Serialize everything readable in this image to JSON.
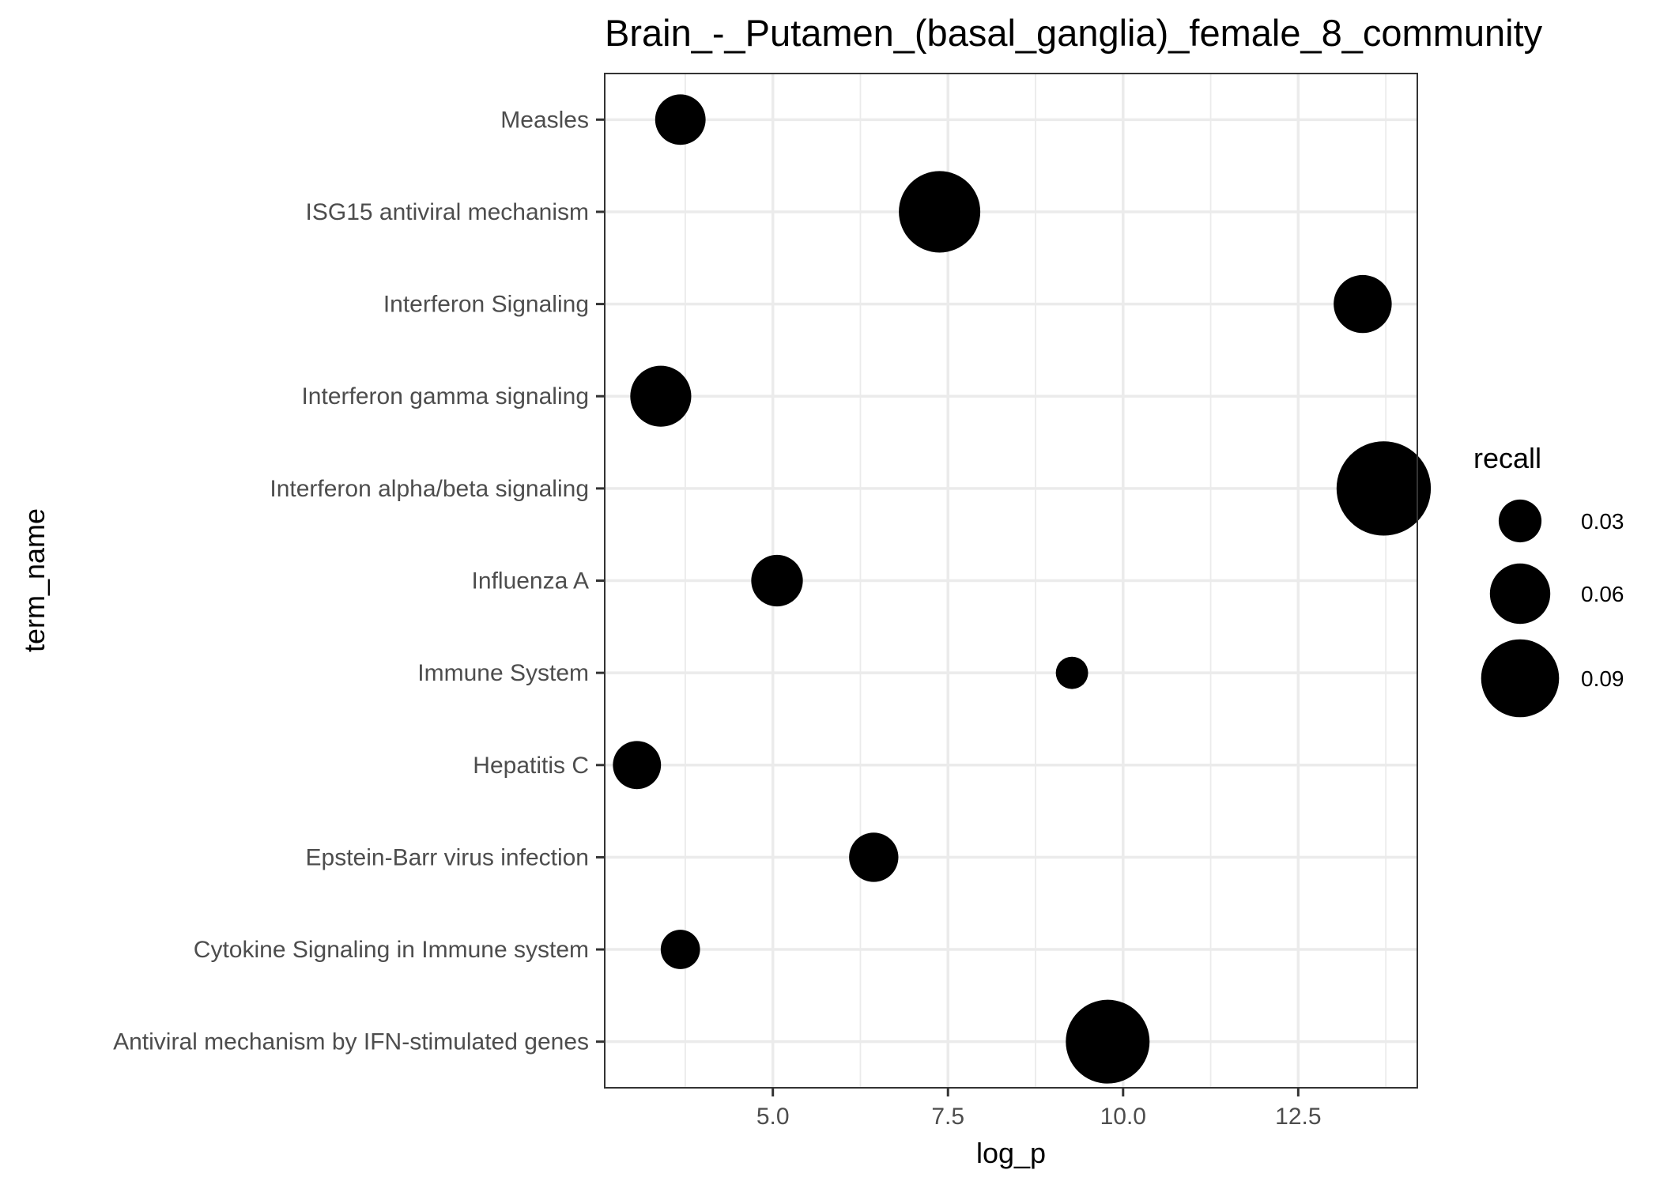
{
  "chart_data": {
    "type": "scatter",
    "title": "Brain_-_Putamen_(basal_ganglia)_female_8_community",
    "xlabel": "log_p",
    "ylabel": "term_name",
    "xlim": [
      2.6,
      14.2
    ],
    "x_ticks": [
      5.0,
      7.5,
      10.0,
      12.5
    ],
    "x_tick_labels": [
      "5.0",
      "7.5",
      "10.0",
      "12.5"
    ],
    "grid": true,
    "legend": {
      "title": "recall",
      "placement": "right",
      "entries": [
        {
          "label": "0.03",
          "value": 0.03
        },
        {
          "label": "0.06",
          "value": 0.06
        },
        {
          "label": "0.09",
          "value": 0.09
        }
      ]
    },
    "categories": [
      "Measles",
      "ISG15 antiviral mechanism",
      "Interferon Signaling",
      "Interferon gamma signaling",
      "Interferon alpha/beta signaling",
      "Influenza A",
      "Immune System",
      "Hepatitis C",
      "Epstein-Barr virus infection",
      "Cytokine Signaling in Immune system",
      "Antiviral mechanism by IFN-stimulated genes"
    ],
    "points": [
      {
        "term": "Measles",
        "log_p": 3.68,
        "recall": 0.043
      },
      {
        "term": "ISG15 antiviral mechanism",
        "log_p": 7.38,
        "recall": 0.096
      },
      {
        "term": "Interferon Signaling",
        "log_p": 13.42,
        "recall": 0.056
      },
      {
        "term": "Interferon gamma signaling",
        "log_p": 3.4,
        "recall": 0.061
      },
      {
        "term": "Interferon alpha/beta signaling",
        "log_p": 13.72,
        "recall": 0.118
      },
      {
        "term": "Influenza A",
        "log_p": 5.06,
        "recall": 0.045
      },
      {
        "term": "Immune System",
        "log_p": 9.27,
        "recall": 0.012
      },
      {
        "term": "Hepatitis C",
        "log_p": 3.06,
        "recall": 0.039
      },
      {
        "term": "Epstein-Barr virus infection",
        "log_p": 6.44,
        "recall": 0.041
      },
      {
        "term": "Cytokine Signaling in Immune system",
        "log_p": 3.68,
        "recall": 0.024
      },
      {
        "term": "Antiviral mechanism by IFN-stimulated genes",
        "log_p": 9.78,
        "recall": 0.1
      }
    ],
    "point_color": "#000000"
  }
}
